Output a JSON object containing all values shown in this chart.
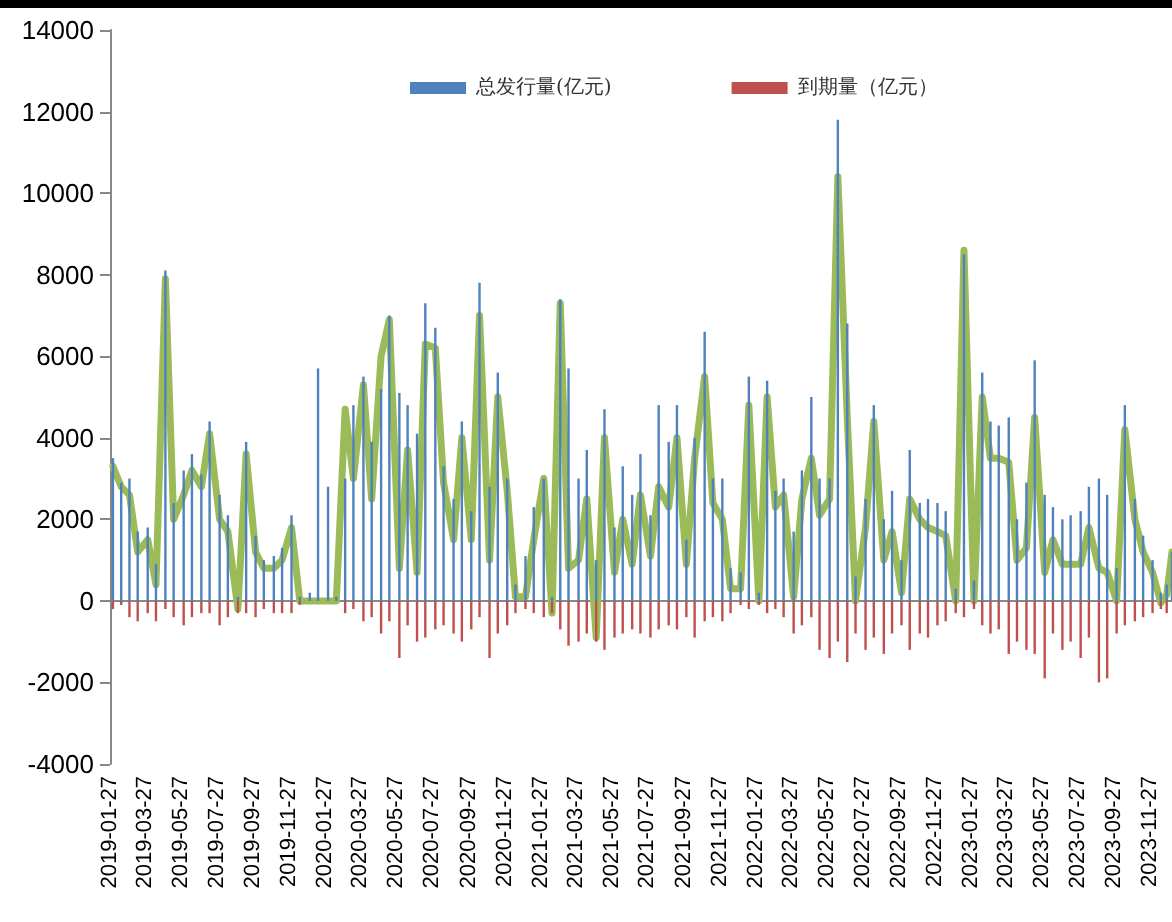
{
  "chart_data": {
    "type": "bar",
    "legend": "top",
    "marker": "none",
    "x": [
      "2019-02-01",
      "2019-02-15",
      "2019-03-01",
      "2019-03-15",
      "2019-04-01",
      "2019-04-15",
      "2019-05-01",
      "2019-05-15",
      "2019-06-01",
      "2019-06-15",
      "2019-07-01",
      "2019-07-15",
      "2019-08-01",
      "2019-08-15",
      "2019-09-01",
      "2019-09-15",
      "2019-10-01",
      "2019-10-15",
      "2019-11-01",
      "2019-11-15",
      "2019-12-01",
      "2019-12-15",
      "2020-01-01",
      "2020-01-15",
      "2020-02-01",
      "2020-02-15",
      "2020-03-01",
      "2020-03-15",
      "2020-04-01",
      "2020-04-15",
      "2020-05-01",
      "2020-05-15",
      "2020-06-01",
      "2020-06-15",
      "2020-07-01",
      "2020-07-15",
      "2020-08-01",
      "2020-08-15",
      "2020-09-01",
      "2020-09-15",
      "2020-10-01",
      "2020-10-15",
      "2020-11-01",
      "2020-11-15",
      "2020-12-01",
      "2020-12-15",
      "2021-01-01",
      "2021-01-15",
      "2021-02-01",
      "2021-02-15",
      "2021-03-01",
      "2021-03-15",
      "2021-04-01",
      "2021-04-15",
      "2021-05-01",
      "2021-05-15",
      "2021-06-01",
      "2021-06-15",
      "2021-07-01",
      "2021-07-15",
      "2021-08-01",
      "2021-08-15",
      "2021-09-01",
      "2021-09-15",
      "2021-10-01",
      "2021-10-15",
      "2021-11-01",
      "2021-11-15",
      "2021-12-01",
      "2021-12-15",
      "2022-01-01",
      "2022-01-15",
      "2022-02-01",
      "2022-02-15",
      "2022-03-01",
      "2022-03-15",
      "2022-04-01",
      "2022-04-15",
      "2022-05-01",
      "2022-05-15",
      "2022-06-01",
      "2022-06-15",
      "2022-07-01",
      "2022-07-15",
      "2022-08-01",
      "2022-08-15",
      "2022-09-01",
      "2022-09-15",
      "2022-10-01",
      "2022-10-15",
      "2022-11-01",
      "2022-11-15",
      "2022-12-01",
      "2022-12-15",
      "2023-01-01",
      "2023-01-15",
      "2023-02-01",
      "2023-02-15",
      "2023-03-01",
      "2023-03-15",
      "2023-04-01",
      "2023-04-15",
      "2023-05-01",
      "2023-05-15",
      "2023-06-01",
      "2023-06-15",
      "2023-07-01",
      "2023-07-15",
      "2023-08-01",
      "2023-08-15",
      "2023-09-01",
      "2023-09-15",
      "2023-10-01",
      "2023-10-15",
      "2023-11-01",
      "2023-11-15",
      "2023-12-01",
      "2023-12-15",
      "2023-12-25",
      "2024-01-03"
    ],
    "series": [
      {
        "name": "总发行量(亿元)",
        "color": "#4f81bd",
        "values": [
          3500,
          2900,
          3000,
          1700,
          1800,
          900,
          8100,
          2400,
          3200,
          3600,
          3100,
          4400,
          2600,
          2100,
          100,
          3900,
          1600,
          1000,
          1100,
          1300,
          2100,
          100,
          200,
          5700,
          2800,
          100,
          3000,
          4800,
          5500,
          3900,
          5200,
          7000,
          5100,
          4800,
          4100,
          7300,
          6700,
          3300,
          2500,
          4400,
          2200,
          7800,
          2800,
          5600,
          3000,
          400,
          1100,
          2300,
          3000,
          100,
          7400,
          5700,
          3000,
          3700,
          1000,
          4700,
          1800,
          3300,
          2600,
          3600,
          2100,
          4800,
          3900,
          4800,
          1500,
          4000,
          6600,
          3000,
          3000,
          800,
          700,
          5500,
          200,
          5400,
          2700,
          3000,
          1700,
          3200,
          5000,
          3000,
          3000,
          11800,
          6800,
          600,
          2500,
          4800,
          2000,
          2700,
          1000,
          3700,
          2400,
          2500,
          2400,
          2200,
          300,
          8500,
          500,
          5600,
          4400,
          4300,
          4500,
          2000,
          2900,
          5900,
          2600,
          2300,
          2000,
          2100,
          2200,
          2800,
          3000,
          2600,
          800,
          4800,
          2500,
          1600,
          1000,
          200,
          400,
          1200
        ]
      },
      {
        "name": "到期量（亿元）",
        "color": "#c0504d",
        "values": [
          -200,
          -100,
          -400,
          -500,
          -300,
          -500,
          -200,
          -400,
          -600,
          -400,
          -300,
          -300,
          -600,
          -400,
          -300,
          -300,
          -400,
          -200,
          -300,
          -300,
          -300,
          -100,
          0,
          0,
          0,
          0,
          -300,
          -200,
          -500,
          -400,
          -800,
          -500,
          -1400,
          -600,
          -1000,
          -900,
          -700,
          -600,
          -800,
          -1000,
          -700,
          -400,
          -1400,
          -800,
          -600,
          -300,
          -200,
          -300,
          -400,
          -300,
          -700,
          -1100,
          -1000,
          -800,
          -1000,
          -1200,
          -900,
          -800,
          -700,
          -800,
          -900,
          -700,
          -600,
          -700,
          -400,
          -900,
          -500,
          -400,
          -500,
          -300,
          -100,
          -200,
          -100,
          -300,
          -200,
          -400,
          -800,
          -600,
          -400,
          -1200,
          -1400,
          -1000,
          -1500,
          -800,
          -1200,
          -900,
          -1300,
          -800,
          -600,
          -1200,
          -800,
          -900,
          -600,
          -500,
          -300,
          -400,
          -200,
          -600,
          -800,
          -700,
          -1300,
          -1000,
          -1200,
          -1300,
          -1900,
          -800,
          -1200,
          -1000,
          -1400,
          -900,
          -2000,
          -1900,
          -800,
          -600,
          -500,
          -400,
          -300,
          -200,
          -300,
          0
        ]
      },
      {
        "type": "line",
        "color": "#9bbb59",
        "values": [
          3300,
          2800,
          2600,
          1200,
          1500,
          400,
          7900,
          2000,
          2600,
          3200,
          2800,
          4100,
          2000,
          1700,
          -200,
          3600,
          1200,
          800,
          800,
          1000,
          1800,
          0,
          0,
          0,
          0,
          0,
          4700,
          3000,
          5300,
          2500,
          6000,
          6900,
          800,
          3700,
          700,
          6300,
          6200,
          2900,
          1500,
          4000,
          1500,
          7000,
          1000,
          5000,
          2700,
          100,
          100,
          1500,
          3000,
          -300,
          7300,
          800,
          1000,
          2500,
          -900,
          4000,
          700,
          2000,
          900,
          2600,
          1100,
          2800,
          2300,
          4000,
          900,
          3500,
          5500,
          2400,
          2000,
          300,
          300,
          4800,
          0,
          5000,
          2300,
          2600,
          100,
          2500,
          3500,
          2100,
          2500,
          10400,
          4500,
          0,
          1800,
          4400,
          1000,
          1700,
          200,
          2500,
          2000,
          1800,
          1700,
          1600,
          0,
          8600,
          0,
          5000,
          3500,
          3500,
          3400,
          1000,
          1300,
          4500,
          700,
          1500,
          900,
          900,
          900,
          1800,
          800,
          700,
          0,
          4200,
          2000,
          1200,
          700,
          -50,
          150,
          1200
        ]
      }
    ],
    "xlim": [
      "2019-01-27",
      "2024-01-03"
    ],
    "xticks": [
      "2019-01-27",
      "2019-03-27",
      "2019-05-27",
      "2019-07-27",
      "2019-09-27",
      "2019-11-27",
      "2020-01-27",
      "2020-03-27",
      "2020-05-27",
      "2020-07-27",
      "2020-09-27",
      "2020-11-27",
      "2021-01-27",
      "2021-03-27",
      "2021-05-27",
      "2021-07-27",
      "2021-09-27",
      "2021-11-27",
      "2022-01-27",
      "2022-03-27",
      "2022-05-27",
      "2022-07-27",
      "2022-09-27",
      "2022-11-27",
      "2023-01-27",
      "2023-03-27",
      "2023-05-27",
      "2023-07-27",
      "2023-09-27",
      "2023-11-27"
    ],
    "ylim": [
      -4000,
      14000
    ],
    "yticks": [
      -4000,
      -2000,
      0,
      2000,
      4000,
      6000,
      8000,
      10000,
      12000,
      14000
    ]
  }
}
